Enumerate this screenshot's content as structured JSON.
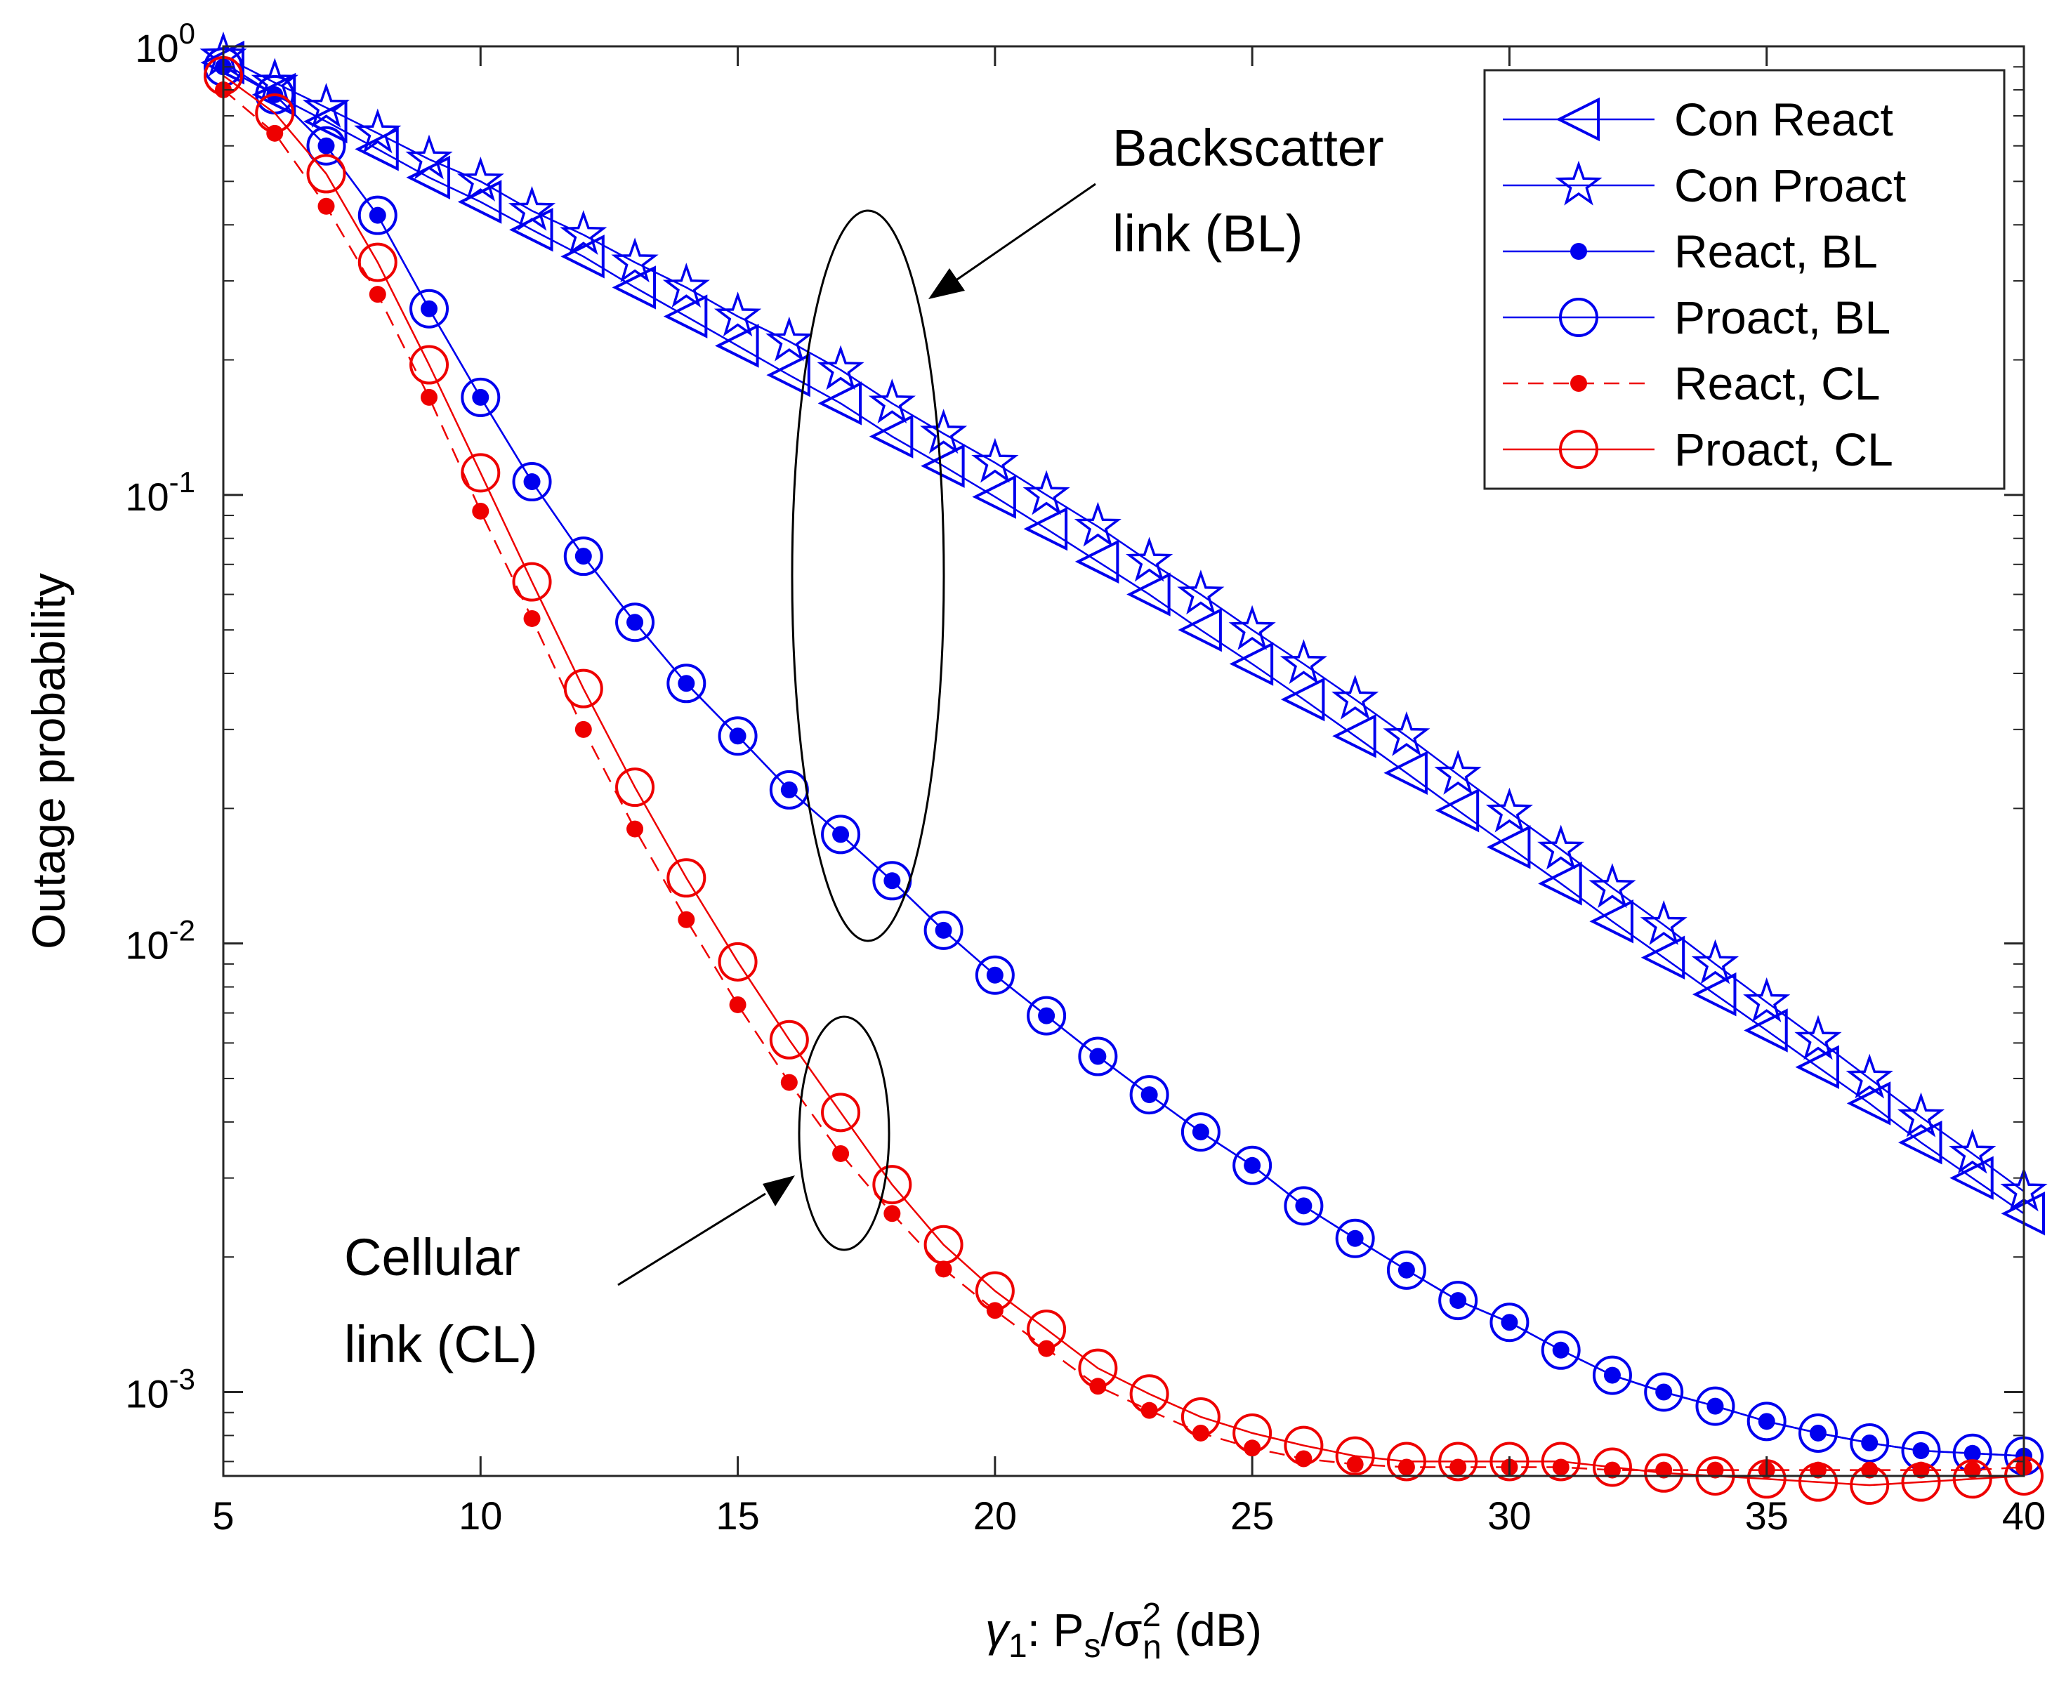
{
  "colors": {
    "blue": "#0000ee",
    "red": "#ee0000",
    "axis": "#000000"
  },
  "chart_data": {
    "type": "line",
    "yscale": "log",
    "xlabel": {
      "gamma": "γ",
      "sub1": "1",
      "mid": ": P",
      "sub_s": "s",
      "slash": "/σ",
      "sup2": "2",
      "sub_n": "n",
      "unit": " (dB)"
    },
    "ylabel": "Outage probability",
    "xlim": [
      5,
      40
    ],
    "ylim": [
      0.00065,
      1.0
    ],
    "x_ticks": [
      "5",
      "10",
      "15",
      "20",
      "25",
      "30",
      "35",
      "40"
    ],
    "y_ticks": [
      {
        "value": 1,
        "base": "10",
        "exp": "0"
      },
      {
        "value": 0.1,
        "base": "10",
        "exp": "-1"
      },
      {
        "value": 0.01,
        "base": "10",
        "exp": "-2"
      },
      {
        "value": 0.001,
        "base": "10",
        "exp": "-3"
      }
    ],
    "x": [
      5,
      6,
      7,
      8,
      9,
      10,
      11,
      12,
      13,
      14,
      15,
      16,
      17,
      18,
      19,
      20,
      21,
      22,
      23,
      24,
      25,
      26,
      27,
      28,
      29,
      30,
      31,
      32,
      33,
      34,
      35,
      36,
      37,
      38,
      39,
      40
    ],
    "series": [
      {
        "name": "Con React",
        "color": "#0000ee",
        "line": "solid",
        "marker": "triangle-left",
        "values": [
          0.92,
          0.78,
          0.68,
          0.59,
          0.51,
          0.45,
          0.39,
          0.34,
          0.29,
          0.25,
          0.215,
          0.185,
          0.16,
          0.135,
          0.116,
          0.099,
          0.084,
          0.071,
          0.06,
          0.05,
          0.042,
          0.035,
          0.029,
          0.024,
          0.0198,
          0.0164,
          0.0136,
          0.0112,
          0.0093,
          0.0077,
          0.0064,
          0.0053,
          0.0044,
          0.0036,
          0.003,
          0.0025
        ]
      },
      {
        "name": "Con Proact",
        "color": "#0000ee",
        "line": "solid",
        "marker": "star",
        "values": [
          0.95,
          0.83,
          0.73,
          0.64,
          0.56,
          0.5,
          0.43,
          0.38,
          0.33,
          0.29,
          0.25,
          0.22,
          0.19,
          0.16,
          0.137,
          0.118,
          0.1,
          0.085,
          0.071,
          0.06,
          0.05,
          0.042,
          0.035,
          0.029,
          0.0238,
          0.0196,
          0.0162,
          0.0133,
          0.011,
          0.009,
          0.0074,
          0.0061,
          0.005,
          0.0041,
          0.0034,
          0.0028
        ]
      },
      {
        "name": "React, BL",
        "color": "#0000ee",
        "line": "solid",
        "marker": "dot",
        "values": [
          0.9,
          0.78,
          0.6,
          0.42,
          0.26,
          0.165,
          0.107,
          0.073,
          0.052,
          0.038,
          0.029,
          0.022,
          0.0175,
          0.0138,
          0.0107,
          0.0085,
          0.0069,
          0.0056,
          0.0046,
          0.0038,
          0.0032,
          0.0026,
          0.0022,
          0.00187,
          0.0016,
          0.00143,
          0.00124,
          0.00109,
          0.001,
          0.00093,
          0.00086,
          0.00081,
          0.00077,
          0.00074,
          0.00073,
          0.00072
        ]
      },
      {
        "name": "Proact, BL",
        "color": "#0000ee",
        "line": "solid",
        "marker": "circle",
        "values": [
          0.9,
          0.78,
          0.6,
          0.42,
          0.26,
          0.165,
          0.107,
          0.073,
          0.052,
          0.038,
          0.029,
          0.022,
          0.0175,
          0.0138,
          0.0107,
          0.0085,
          0.0069,
          0.0056,
          0.0046,
          0.0038,
          0.0032,
          0.0026,
          0.0022,
          0.00187,
          0.0016,
          0.00143,
          0.00124,
          0.00109,
          0.001,
          0.00093,
          0.00086,
          0.00081,
          0.00077,
          0.00074,
          0.00073,
          0.00072
        ]
      },
      {
        "name": "React, CL",
        "color": "#ee0000",
        "line": "dashed",
        "marker": "dot",
        "values": [
          0.8,
          0.64,
          0.44,
          0.28,
          0.165,
          0.092,
          0.053,
          0.03,
          0.018,
          0.0113,
          0.0073,
          0.0049,
          0.0034,
          0.0025,
          0.00188,
          0.00152,
          0.00125,
          0.00103,
          0.00091,
          0.00081,
          0.00075,
          0.00071,
          0.00069,
          0.00068,
          0.00068,
          0.00068,
          0.00068,
          0.00067,
          0.00067,
          0.00067,
          0.00067,
          0.00067,
          0.00067,
          0.00067,
          0.00067,
          0.00068
        ]
      },
      {
        "name": "Proact, CL",
        "color": "#ee0000",
        "line": "solid",
        "marker": "circle",
        "values": [
          0.86,
          0.71,
          0.52,
          0.33,
          0.195,
          0.112,
          0.064,
          0.037,
          0.0223,
          0.014,
          0.0091,
          0.0061,
          0.0042,
          0.0029,
          0.00213,
          0.00168,
          0.00138,
          0.00113,
          0.00099,
          0.00088,
          0.00081,
          0.00076,
          0.00072,
          0.0007,
          0.0007,
          0.0007,
          0.0007,
          0.00068,
          0.00066,
          0.00065,
          0.00064,
          0.00063,
          0.00062,
          0.00063,
          0.00064,
          0.00065
        ]
      }
    ],
    "legend": {
      "placement": "top-right"
    },
    "annotations": [
      {
        "text_lines": [
          "Backscatter",
          "link (BL)"
        ]
      },
      {
        "text_lines": [
          "Cellular",
          "link (CL)"
        ]
      }
    ]
  }
}
